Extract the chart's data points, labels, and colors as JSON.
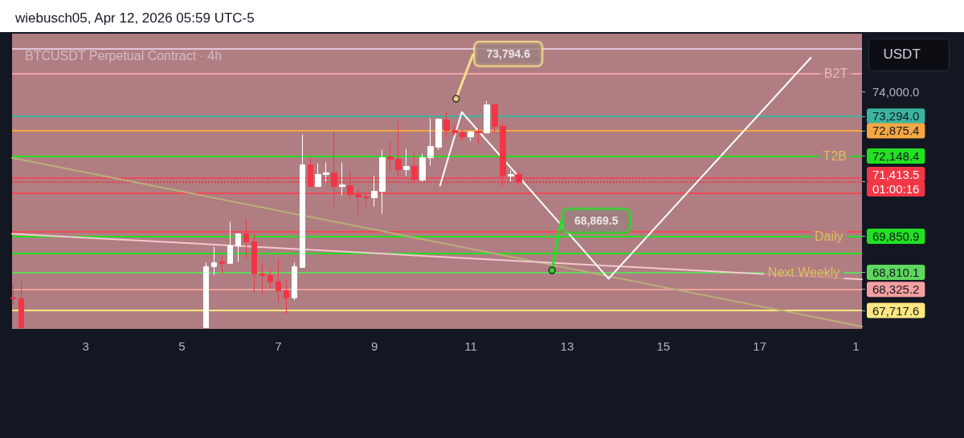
{
  "chart_data": {
    "type": "candlestick",
    "title": "wiebusch05, Apr 12, 2026 05:59 UTC-5",
    "subtitle": "BTCUSDT Perpetual Contract · 4h",
    "x": [
      "2026-04-01T12:00",
      "2026-04-01T16:00",
      "2026-04-05T12:00",
      "2026-04-05T16:00",
      "2026-04-05T20:00",
      "2026-04-06T00:00",
      "2026-04-06T04:00",
      "2026-04-06T08:00",
      "2026-04-06T12:00",
      "2026-04-06T16:00",
      "2026-04-06T20:00",
      "2026-04-07T00:00",
      "2026-04-07T04:00",
      "2026-04-07T08:00",
      "2026-04-07T12:00",
      "2026-04-07T16:00",
      "2026-04-07T20:00",
      "2026-04-08T00:00",
      "2026-04-08T04:00",
      "2026-04-08T08:00",
      "2026-04-08T12:00",
      "2026-04-08T16:00",
      "2026-04-08T20:00",
      "2026-04-09T00:00",
      "2026-04-09T04:00",
      "2026-04-09T08:00",
      "2026-04-09T12:00",
      "2026-04-09T16:00",
      "2026-04-09T20:00",
      "2026-04-10T00:00",
      "2026-04-10T04:00",
      "2026-04-10T08:00",
      "2026-04-10T12:00",
      "2026-04-10T16:00",
      "2026-04-10T20:00",
      "2026-04-11T00:00",
      "2026-04-11T04:00",
      "2026-04-11T08:00",
      "2026-04-11T12:00",
      "2026-04-11T16:00",
      "2026-04-11T20:00",
      "2026-04-12T00:00"
    ],
    "ohlc": [
      [
        68082,
        68473,
        67899,
        68059
      ],
      [
        68059,
        68634,
        67220,
        67220
      ],
      [
        67230,
        69093,
        67230,
        68978
      ],
      [
        68978,
        69552,
        68725,
        69093
      ],
      [
        69116,
        69300,
        68771,
        69070
      ],
      [
        69070,
        70264,
        69070,
        69575
      ],
      [
        69575,
        69920,
        69116,
        69920
      ],
      [
        69920,
        70356,
        69208,
        69690
      ],
      [
        69690,
        69920,
        68243,
        68771
      ],
      [
        68771,
        69093,
        68174,
        68725
      ],
      [
        68725,
        68932,
        68358,
        68542
      ],
      [
        68542,
        69208,
        67967,
        68289
      ],
      [
        68289,
        68634,
        67623,
        68082
      ],
      [
        68082,
        69093,
        68013,
        68978
      ],
      [
        68955,
        72768,
        68955,
        71896
      ],
      [
        71896,
        72102,
        71275,
        71275
      ],
      [
        71275,
        71942,
        71275,
        71620
      ],
      [
        71620,
        71965,
        71390,
        71666
      ],
      [
        71666,
        72837,
        70701,
        71275
      ],
      [
        71275,
        71965,
        71022,
        71321
      ],
      [
        71298,
        71735,
        70908,
        71045
      ],
      [
        71045,
        71183,
        70471,
        70977
      ],
      [
        70977,
        71091,
        70701,
        70954
      ],
      [
        70954,
        71574,
        70701,
        71137
      ],
      [
        71137,
        72332,
        70494,
        72102
      ],
      [
        72125,
        72562,
        71689,
        72056
      ],
      [
        72056,
        73136,
        71574,
        71758
      ],
      [
        71758,
        72355,
        71574,
        71850
      ],
      [
        71850,
        72217,
        71413,
        71482
      ],
      [
        71459,
        72217,
        71413,
        72102
      ],
      [
        72102,
        73228,
        71873,
        72424
      ],
      [
        72401,
        73228,
        72332,
        73205
      ],
      [
        73182,
        73412,
        72677,
        72883
      ],
      [
        72883,
        73067,
        72745,
        72814
      ],
      [
        72814,
        72906,
        72585,
        72700
      ],
      [
        72700,
        72883,
        72585,
        72837
      ],
      [
        72860,
        72929,
        72493,
        72814
      ],
      [
        72814,
        73733,
        72814,
        73618
      ],
      [
        73618,
        73618,
        72814,
        72998
      ],
      [
        72998,
        73113,
        71298,
        71574
      ],
      [
        71574,
        71735,
        71413,
        71620
      ],
      [
        71620,
        71735,
        71321,
        71413.5
      ]
    ],
    "colors": [
      "#f23645",
      "#f23645",
      "#ffffff",
      "#ffffff",
      "#f23645",
      "#ffffff",
      "#ffffff",
      "#f23645",
      "#f23645",
      "#f23645",
      "#f23645",
      "#f23645",
      "#f23645",
      "#ffffff",
      "#ffffff",
      "#f23645",
      "#ffffff",
      "#ffffff",
      "#f23645",
      "#ffffff",
      "#f23645",
      "#f23645",
      "#f23645",
      "#ffffff",
      "#ffffff",
      "#f23645",
      "#f23645",
      "#ffffff",
      "#f23645",
      "#ffffff",
      "#ffffff",
      "#ffffff",
      "#f23645",
      "#f23645",
      "#f23645",
      "#ffffff",
      "#f23645",
      "#ffffff",
      "#f23645",
      "#f23645",
      "#ffffff",
      "#f23645"
    ],
    "series": [
      {
        "type": "line",
        "color": "#b8b07a",
        "x": [
          "2026-04-01T11:20",
          "2026-04-19T03:00"
        ],
        "values": [
          72100,
          67260
        ]
      },
      {
        "type": "line",
        "color": "#f4c8d0",
        "x": [
          "2026-04-01T11:20",
          "2026-04-19T03:00"
        ],
        "values": [
          69920,
          68610
        ]
      },
      {
        "type": "line",
        "color": "#ffffff",
        "x": [
          "2026-04-10T08:40",
          "2026-04-10T19:30",
          "2026-04-13T20:40",
          "2026-04-18T01:30"
        ],
        "values": [
          71300,
          73410,
          68630,
          74970
        ]
      }
    ],
    "marker": "none",
    "line_style": "solid",
    "grid": false,
    "xlim": [
      "2026-04-01T11:20",
      "2026-04-19T03:00"
    ],
    "xticks": [
      {
        "value": "2026-04-03",
        "label": "3"
      },
      {
        "value": "2026-04-05",
        "label": "5"
      },
      {
        "value": "2026-04-07",
        "label": "7"
      },
      {
        "value": "2026-04-09",
        "label": "9"
      },
      {
        "value": "2026-04-11",
        "label": "11"
      },
      {
        "value": "2026-04-13",
        "label": "13"
      },
      {
        "value": "2026-04-15",
        "label": "15"
      },
      {
        "value": "2026-04-17",
        "label": "17"
      },
      {
        "value": "2026-04-19",
        "label": "1"
      }
    ],
    "ylim": [
      67190,
      75660
    ],
    "yticks": [
      {
        "value": 74000,
        "label": "74,000.0"
      },
      {
        "value": 73294,
        "label": "73,294.0"
      },
      {
        "value": 72875.4,
        "label": "72,875.4"
      },
      {
        "value": 72148.4,
        "label": "72,148.4"
      },
      {
        "value": 71413.5,
        "label": "71,413.5\n01:00:16"
      },
      {
        "value": 69850.9,
        "label": "69,850.9"
      },
      {
        "value": 68810.1,
        "label": "68,810.1"
      },
      {
        "value": 68325.2,
        "label": "68,325.2"
      },
      {
        "value": 67717.6,
        "label": "67,717.6"
      }
    ],
    "ref_lines": [
      {
        "axis": "y",
        "value": 75226,
        "color": "#e4c4dc"
      },
      {
        "axis": "y",
        "value": 74514,
        "color": "#f4a0a8"
      },
      {
        "axis": "y",
        "value": 73294,
        "color": "#3cb4a0"
      },
      {
        "axis": "y",
        "value": 72875.4,
        "color": "#f5a742"
      },
      {
        "axis": "y",
        "value": 72148.4,
        "color": "#22e022"
      },
      {
        "axis": "y",
        "value": 71528,
        "color": "#f04858"
      },
      {
        "axis": "y",
        "value": 71413.5,
        "color": "#f23645",
        "line_style": "dotted"
      },
      {
        "axis": "y",
        "value": 71091,
        "color": "#f04858"
      },
      {
        "axis": "y",
        "value": 69990,
        "color": "#f04858"
      },
      {
        "axis": "y",
        "value": 69850.9,
        "color": "#22e022"
      },
      {
        "axis": "y",
        "value": 69369,
        "color": "#22e022"
      },
      {
        "axis": "y",
        "value": 68810.1,
        "color": "#5ed85e"
      },
      {
        "axis": "y",
        "value": 68325.2,
        "color": "#f4a0a0"
      },
      {
        "axis": "y",
        "value": 67717.6,
        "color": "#ffe880"
      }
    ],
    "annotations": [
      "USDT",
      {
        "text": "73,794.6",
        "x": "2026-04-10T16:40",
        "y": 73794.6
      },
      {
        "text": "68,869.5",
        "x": "2026-04-12T16:30",
        "y": 68869.5
      },
      {
        "text": "B2T",
        "x": "2026-04-18T14:00",
        "y": 74514
      },
      {
        "text": "T2B",
        "x": "2026-04-18T13:30",
        "y": 72148.4
      },
      {
        "text": "Daily",
        "x": "2026-04-18T10:30",
        "y": 69850.9
      },
      {
        "text": "Next Weekly",
        "x": "2026-04-17T22:00",
        "y": 68810.1
      }
    ]
  }
}
